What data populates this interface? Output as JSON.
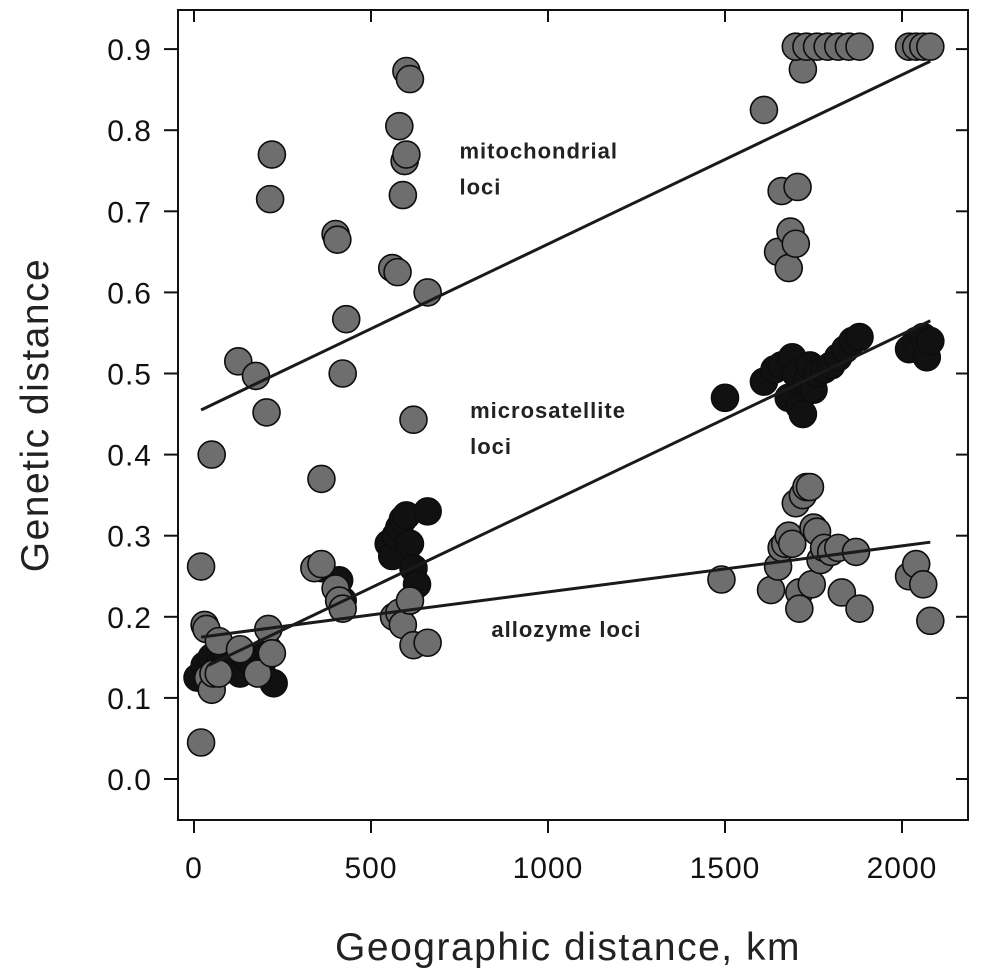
{
  "chart_data": {
    "type": "scatter",
    "title": "",
    "xlabel": "Geographic distance, km",
    "ylabel": "Genetic distance",
    "xlim": [
      -50,
      2200
    ],
    "ylim": [
      -0.05,
      0.95
    ],
    "x_ticks": [
      0,
      500,
      1000,
      1500,
      2000
    ],
    "x_tick_labels": [
      "0",
      "500",
      "1000",
      "1500",
      "2000"
    ],
    "y_ticks": [
      0.0,
      0.1,
      0.2,
      0.3,
      0.4,
      0.5,
      0.6,
      0.7,
      0.8,
      0.9
    ],
    "y_tick_labels": [
      "0.0",
      "0.1",
      "0.2",
      "0.3",
      "0.4",
      "0.5",
      "0.6",
      "0.7",
      "0.8",
      "0.9"
    ],
    "grid": false,
    "legend": "none",
    "colors": {
      "gray_marker": "#6e6e6e",
      "black_marker": "#111111",
      "line": "#1a1a1a",
      "axis": "#111111"
    },
    "annotations": [
      {
        "lines": [
          "mitochondrial",
          "loci"
        ],
        "x": 750,
        "y": 0.765
      },
      {
        "lines": [
          "microsatellite",
          "loci"
        ],
        "x": 780,
        "y": 0.445
      },
      {
        "lines": [
          "allozyme loci"
        ],
        "x": 840,
        "y": 0.175
      }
    ],
    "series": [
      {
        "marker": "black",
        "fit": {
          "x": [
            40,
            2080
          ],
          "y": [
            0.14,
            0.565
          ]
        },
        "points": [
          [
            10,
            0.125
          ],
          [
            30,
            0.14
          ],
          [
            50,
            0.15
          ],
          [
            70,
            0.14
          ],
          [
            90,
            0.145
          ],
          [
            110,
            0.135
          ],
          [
            130,
            0.13
          ],
          [
            150,
            0.15
          ],
          [
            170,
            0.14
          ],
          [
            190,
            0.135
          ],
          [
            210,
            0.16
          ],
          [
            225,
            0.118
          ],
          [
            360,
            0.26
          ],
          [
            410,
            0.245
          ],
          [
            420,
            0.22
          ],
          [
            550,
            0.29
          ],
          [
            560,
            0.275
          ],
          [
            570,
            0.3
          ],
          [
            580,
            0.31
          ],
          [
            590,
            0.32
          ],
          [
            600,
            0.325
          ],
          [
            610,
            0.29
          ],
          [
            620,
            0.26
          ],
          [
            630,
            0.24
          ],
          [
            660,
            0.33
          ],
          [
            1500,
            0.47
          ],
          [
            1610,
            0.49
          ],
          [
            1640,
            0.505
          ],
          [
            1660,
            0.51
          ],
          [
            1680,
            0.47
          ],
          [
            1690,
            0.52
          ],
          [
            1700,
            0.5
          ],
          [
            1710,
            0.46
          ],
          [
            1720,
            0.45
          ],
          [
            1730,
            0.49
          ],
          [
            1740,
            0.51
          ],
          [
            1750,
            0.48
          ],
          [
            1760,
            0.5
          ],
          [
            1780,
            0.505
          ],
          [
            1800,
            0.51
          ],
          [
            1820,
            0.52
          ],
          [
            1840,
            0.53
          ],
          [
            1860,
            0.54
          ],
          [
            1880,
            0.545
          ],
          [
            2020,
            0.53
          ],
          [
            2040,
            0.54
          ],
          [
            2060,
            0.545
          ],
          [
            2070,
            0.52
          ],
          [
            2080,
            0.54
          ]
        ]
      },
      {
        "marker": "gray",
        "fit": {
          "x": [
            20,
            2080
          ],
          "y": [
            0.455,
            0.885
          ]
        },
        "points": [
          [
            50,
            0.4
          ],
          [
            125,
            0.515
          ],
          [
            175,
            0.497
          ],
          [
            205,
            0.452
          ],
          [
            220,
            0.77
          ],
          [
            215,
            0.715
          ],
          [
            360,
            0.37
          ],
          [
            400,
            0.672
          ],
          [
            405,
            0.665
          ],
          [
            420,
            0.5
          ],
          [
            430,
            0.567
          ],
          [
            560,
            0.63
          ],
          [
            575,
            0.625
          ],
          [
            580,
            0.805
          ],
          [
            590,
            0.72
          ],
          [
            595,
            0.762
          ],
          [
            600,
            0.77
          ],
          [
            600,
            0.873
          ],
          [
            610,
            0.863
          ],
          [
            620,
            0.443
          ],
          [
            660,
            0.6
          ],
          [
            1610,
            0.825
          ],
          [
            1650,
            0.65
          ],
          [
            1660,
            0.725
          ],
          [
            1680,
            0.63
          ],
          [
            1685,
            0.675
          ],
          [
            1700,
            0.66
          ],
          [
            1705,
            0.73
          ],
          [
            1720,
            0.875
          ],
          [
            1700,
            0.903
          ],
          [
            1730,
            0.903
          ],
          [
            1760,
            0.903
          ],
          [
            1790,
            0.903
          ],
          [
            1820,
            0.903
          ],
          [
            1850,
            0.903
          ],
          [
            1880,
            0.903
          ],
          [
            2020,
            0.903
          ],
          [
            2040,
            0.903
          ],
          [
            2060,
            0.903
          ],
          [
            2080,
            0.903
          ]
        ]
      },
      {
        "marker": "gray",
        "fit": {
          "x": [
            20,
            2080
          ],
          "y": [
            0.175,
            0.292
          ]
        },
        "points": [
          [
            20,
            0.045
          ],
          [
            20,
            0.262
          ],
          [
            30,
            0.19
          ],
          [
            35,
            0.185
          ],
          [
            40,
            0.125
          ],
          [
            50,
            0.11
          ],
          [
            55,
            0.13
          ],
          [
            70,
            0.17
          ],
          [
            70,
            0.13
          ],
          [
            130,
            0.16
          ],
          [
            180,
            0.13
          ],
          [
            210,
            0.185
          ],
          [
            220,
            0.155
          ],
          [
            340,
            0.26
          ],
          [
            360,
            0.265
          ],
          [
            400,
            0.235
          ],
          [
            410,
            0.22
          ],
          [
            420,
            0.21
          ],
          [
            565,
            0.2
          ],
          [
            580,
            0.205
          ],
          [
            590,
            0.19
          ],
          [
            610,
            0.22
          ],
          [
            620,
            0.165
          ],
          [
            660,
            0.168
          ],
          [
            1490,
            0.246
          ],
          [
            1630,
            0.233
          ],
          [
            1650,
            0.262
          ],
          [
            1660,
            0.285
          ],
          [
            1670,
            0.29
          ],
          [
            1680,
            0.3
          ],
          [
            1690,
            0.29
          ],
          [
            1700,
            0.34
          ],
          [
            1710,
            0.23
          ],
          [
            1710,
            0.21
          ],
          [
            1720,
            0.35
          ],
          [
            1730,
            0.36
          ],
          [
            1740,
            0.36
          ],
          [
            1745,
            0.24
          ],
          [
            1750,
            0.31
          ],
          [
            1760,
            0.305
          ],
          [
            1770,
            0.27
          ],
          [
            1780,
            0.285
          ],
          [
            1800,
            0.28
          ],
          [
            1820,
            0.285
          ],
          [
            1830,
            0.23
          ],
          [
            1870,
            0.28
          ],
          [
            1880,
            0.21
          ],
          [
            2020,
            0.25
          ],
          [
            2040,
            0.265
          ],
          [
            2060,
            0.24
          ],
          [
            2080,
            0.195
          ]
        ]
      }
    ]
  }
}
